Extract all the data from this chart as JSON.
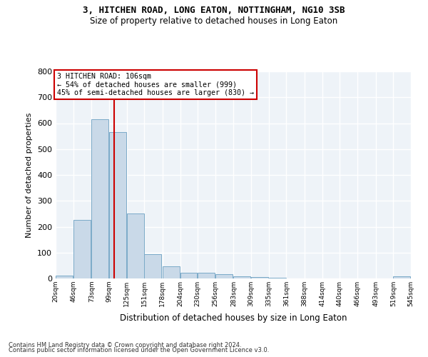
{
  "title1": "3, HITCHEN ROAD, LONG EATON, NOTTINGHAM, NG10 3SB",
  "title2": "Size of property relative to detached houses in Long Eaton",
  "xlabel": "Distribution of detached houses by size in Long Eaton",
  "ylabel": "Number of detached properties",
  "bar_color": "#c9d9e8",
  "bar_edge_color": "#7baac8",
  "bg_color": "#eef3f8",
  "grid_color": "#ffffff",
  "marker_line_color": "#cc0000",
  "marker_value": 106,
  "annotation_line1": "3 HITCHEN ROAD: 106sqm",
  "annotation_line2": "← 54% of detached houses are smaller (999)",
  "annotation_line3": "45% of semi-detached houses are larger (830) →",
  "bins": [
    20,
    46,
    73,
    99,
    125,
    151,
    178,
    204,
    230,
    256,
    283,
    309,
    335,
    361,
    388,
    414,
    440,
    466,
    493,
    519,
    545
  ],
  "values": [
    10,
    225,
    615,
    565,
    250,
    95,
    48,
    22,
    22,
    17,
    7,
    5,
    2,
    0,
    0,
    0,
    0,
    0,
    0,
    8
  ],
  "ylim": [
    0,
    800
  ],
  "yticks": [
    0,
    100,
    200,
    300,
    400,
    500,
    600,
    700,
    800
  ],
  "footer1": "Contains HM Land Registry data © Crown copyright and database right 2024.",
  "footer2": "Contains public sector information licensed under the Open Government Licence v3.0."
}
